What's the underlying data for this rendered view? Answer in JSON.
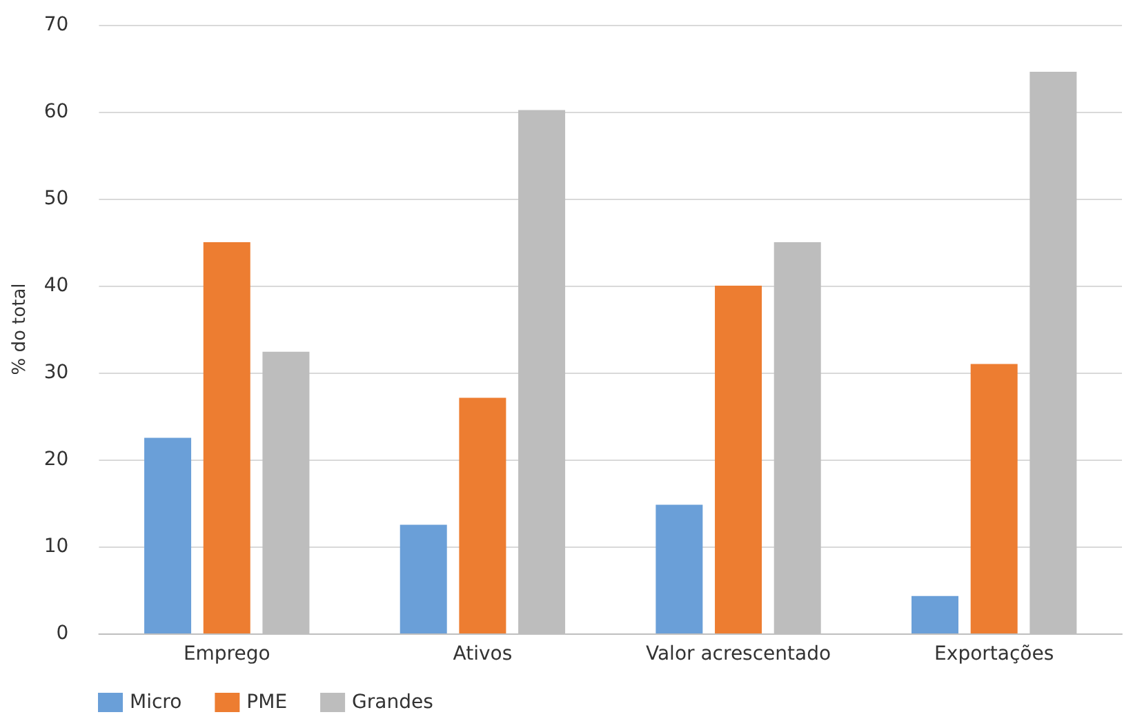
{
  "chart_data": {
    "type": "bar",
    "ylabel": "% do total",
    "categories": [
      "Emprego",
      "Ativos",
      "Valor acrescentado",
      "Exportações"
    ],
    "series": [
      {
        "name": "Micro",
        "color": "#6a9fd8",
        "values": [
          22.5,
          12.5,
          14.8,
          4.3
        ]
      },
      {
        "name": "PME",
        "color": "#ed7d31",
        "values": [
          45,
          27.1,
          40,
          31
        ]
      },
      {
        "name": "Grandes",
        "color": "#bdbdbd",
        "values": [
          32.4,
          60.2,
          45,
          64.6
        ]
      }
    ],
    "ylim": [
      0,
      70
    ],
    "yticks": [
      0,
      10,
      20,
      30,
      40,
      50,
      60,
      70
    ],
    "grid": "y",
    "legend": "bottom left"
  }
}
